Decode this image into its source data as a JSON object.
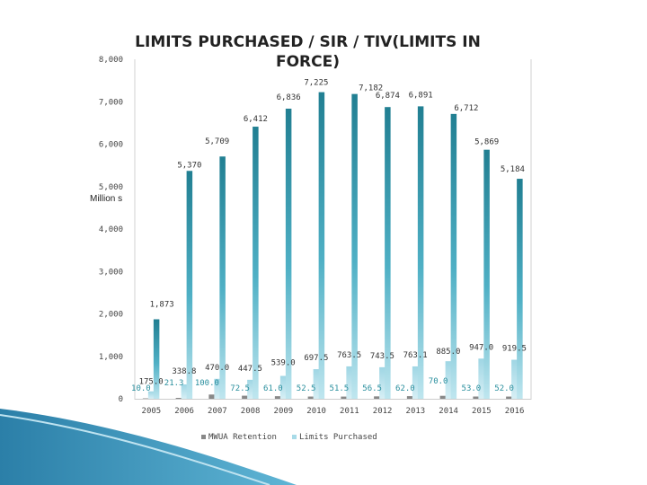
{
  "chart_data": {
    "type": "bar",
    "title": "LIMITS PURCHASED / SIR / TIV(LIMITS IN FORCE)",
    "ylabel": "Million s",
    "xlabel": "",
    "ylim": [
      0,
      8000
    ],
    "yticks": [
      "0",
      "1,000",
      "2,000",
      "3,000",
      "4,000",
      "5,000",
      "6,000",
      "7,000",
      "8,000"
    ],
    "categories": [
      "2005",
      "2006",
      "2007",
      "2008",
      "2009",
      "2010",
      "2011",
      "2012",
      "2013",
      "2014",
      "2015",
      "2016"
    ],
    "series": [
      {
        "name": "MWUA Retention",
        "color": "#888888",
        "values": [
          10.0,
          21.3,
          100.0,
          72.5,
          61.0,
          52.5,
          51.5,
          56.5,
          62.0,
          70.0,
          53.0,
          52.0
        ],
        "labels": [
          "10.0",
          "21.3",
          "100.0",
          "72.5",
          "61.0",
          "52.5",
          "51.5",
          "56.5",
          "62.0",
          "70.0",
          "53.0",
          "52.0"
        ]
      },
      {
        "name": "Limits Purchased",
        "color": "#a8dbe8",
        "values": [
          175.0,
          338.8,
          470.0,
          447.5,
          539.0,
          697.5,
          763.5,
          743.5,
          763.1,
          885.0,
          947.0,
          919.5
        ],
        "labels": [
          "175.0",
          "338.8",
          "470.0",
          "447.5",
          "539.0",
          "697.5",
          "763.5",
          "743.5",
          "763.1",
          "885.0",
          "947.0",
          "919.5"
        ]
      },
      {
        "name": "SIR / TIV",
        "color": "#2a8a9c",
        "values": [
          1873,
          5370,
          5709,
          6412,
          6836,
          7225,
          7182,
          6874,
          6891,
          6712,
          5869,
          5184
        ],
        "labels": [
          "1,873",
          "5,370",
          "5,709",
          "6,412",
          "6,836",
          "7,225",
          "7,182",
          "6,874",
          "6,891",
          "6,712",
          "5,869",
          "5,184"
        ]
      }
    ],
    "legend": [
      "MWUA Retention",
      "Limits Purchased"
    ],
    "legend_position": "bottom",
    "grid": false
  }
}
